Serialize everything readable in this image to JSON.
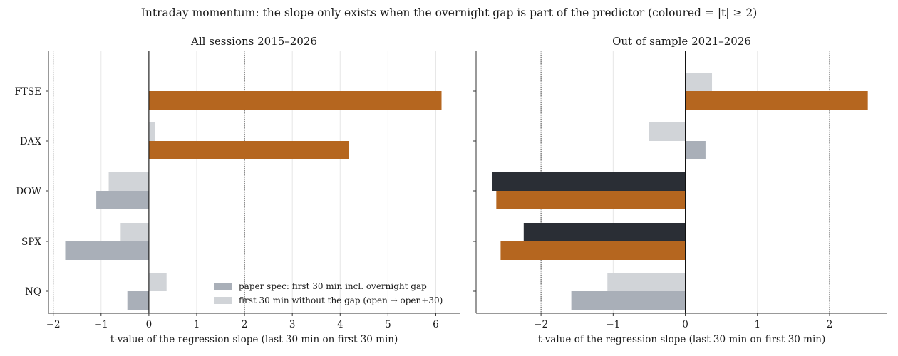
{
  "suptitle": "Intraday momentum: the slope only exists when the overnight gap is part of the predictor (coloured = |t| ≥ 2)",
  "colors": {
    "gap_grey": "#a9afb8",
    "nogap_grey": "#d1d4d8",
    "significant_orange": "#b5661f",
    "significant_dark": "#2a2e35"
  },
  "legend": {
    "placement": "lower-right",
    "entries": [
      "paper spec: first 30 min incl. overnight gap",
      "first 30 min without the gap (open → open+30)"
    ]
  },
  "chart_data": [
    {
      "type": "bar",
      "orientation": "horizontal",
      "title": "All sessions 2015–2026",
      "xlabel": "t-value of the regression slope (last 30 min on first 30 min)",
      "categories": [
        "FTSE",
        "DAX",
        "DOW",
        "SPX",
        "NQ"
      ],
      "xlim": [
        -2.1,
        6.5
      ],
      "xticks": [
        -2,
        -1,
        0,
        1,
        2,
        3,
        4,
        5,
        6
      ],
      "xtick_labels": [
        "−2",
        "−1",
        "0",
        "1",
        "2",
        "3",
        "4",
        "5",
        "6"
      ],
      "reference_lines": [
        -2,
        2
      ],
      "grid": "vertical",
      "series": [
        {
          "name": "paper spec: first 30 min incl. overnight gap",
          "values": [
            6.12,
            4.18,
            -1.1,
            -1.75,
            -0.45
          ]
        },
        {
          "name": "first 30 min without the gap (open → open+30)",
          "values": [
            0.0,
            0.13,
            -0.84,
            -0.59,
            0.37
          ]
        }
      ]
    },
    {
      "type": "bar",
      "orientation": "horizontal",
      "title": "Out of sample 2021–2026",
      "xlabel": "t-value of the regression slope (last 30 min on first 30 min)",
      "categories": [
        "FTSE",
        "DAX",
        "DOW",
        "SPX",
        "NQ"
      ],
      "xlim": [
        -2.9,
        2.8
      ],
      "xticks": [
        -2,
        -1,
        0,
        1,
        2
      ],
      "xtick_labels": [
        "−2",
        "−1",
        "0",
        "1",
        "2"
      ],
      "reference_lines": [
        -2,
        2
      ],
      "grid": "vertical",
      "series": [
        {
          "name": "paper spec: first 30 min incl. overnight gap",
          "values": [
            2.53,
            0.28,
            -2.62,
            -2.56,
            -1.58
          ]
        },
        {
          "name": "first 30 min without the gap (open → open+30)",
          "values": [
            0.37,
            -0.5,
            -2.68,
            -2.24,
            -1.08
          ]
        }
      ]
    }
  ]
}
